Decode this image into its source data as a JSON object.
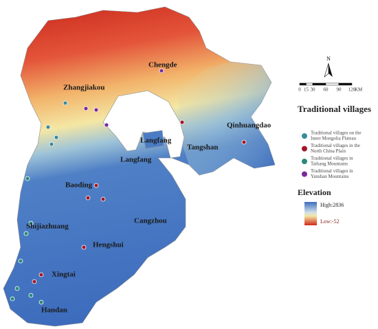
{
  "map": {
    "cities": [
      "Chengde",
      "Zhangjiakou",
      "Qinhuangdao",
      "Langfang",
      "Tangshan",
      "Langfang",
      "Baoding",
      "Shijiazhuang",
      "Cangzhou",
      "Hengshui",
      "Xingtai",
      "Handan"
    ],
    "compass": "N",
    "scale_bar": {
      "labels": [
        0,
        15,
        30,
        60,
        90,
        120
      ],
      "unit": "KM"
    }
  },
  "legend": {
    "title": "Traditional villages",
    "items": [
      [
        "Traditional villages on the",
        "Inner Mongolia Plateau"
      ],
      [
        "Traditional villages in the",
        "North China Plain"
      ],
      [
        "Traditional villages in",
        "Taihang Mountains"
      ],
      [
        "Traditional villages in",
        "Yanshan Mountains"
      ]
    ],
    "elevation_title": "Elevation",
    "high": "High:2836",
    "low": "Low:-52"
  }
}
